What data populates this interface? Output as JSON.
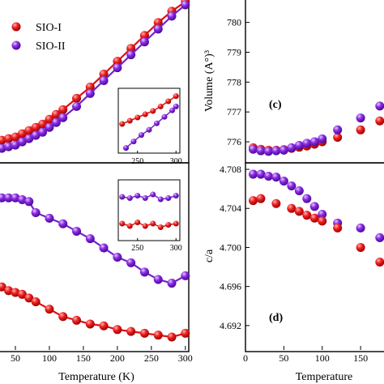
{
  "chart_data": [
    {
      "type": "line",
      "panel_label": "",
      "xlabel": "",
      "ylabel": "",
      "xlim": [
        25,
        305
      ],
      "ylim": [
        0,
        1
      ],
      "legend": {
        "placement": "top-left",
        "entries": [
          "SIO-I",
          "SIO-II"
        ]
      },
      "series": [
        {
          "name": "SIO-I",
          "color": "#dd1111",
          "x": [
            10,
            20,
            30,
            40,
            50,
            60,
            70,
            80,
            90,
            100,
            110,
            120,
            140,
            160,
            180,
            200,
            220,
            240,
            260,
            280,
            300
          ],
          "y": [
            0.11,
            0.12,
            0.13,
            0.14,
            0.15,
            0.17,
            0.19,
            0.21,
            0.23,
            0.26,
            0.29,
            0.32,
            0.39,
            0.46,
            0.54,
            0.62,
            0.7,
            0.78,
            0.86,
            0.93,
            0.99
          ]
        },
        {
          "name": "SIO-II",
          "color": "#7722cc",
          "x": [
            10,
            20,
            30,
            40,
            50,
            60,
            70,
            80,
            90,
            100,
            110,
            120,
            140,
            160,
            180,
            200,
            220,
            240,
            260,
            280,
            300
          ],
          "y": [
            0.06,
            0.07,
            0.08,
            0.09,
            0.1,
            0.12,
            0.14,
            0.16,
            0.18,
            0.21,
            0.24,
            0.27,
            0.34,
            0.42,
            0.5,
            0.58,
            0.66,
            0.74,
            0.82,
            0.9,
            0.97
          ]
        }
      ],
      "inset": {
        "xlim": [
          225,
          305
        ],
        "xticks": [
          250,
          300
        ],
        "series": [
          {
            "name": "SIO-I",
            "x": [
              230,
              240,
              250,
              260,
              270,
              280,
              290,
              300
            ],
            "y": [
              0.45,
              0.5,
              0.55,
              0.6,
              0.65,
              0.72,
              0.8,
              0.88
            ]
          },
          {
            "name": "SIO-II",
            "x": [
              235,
              245,
              255,
              265,
              275,
              285,
              295,
              300
            ],
            "y": [
              0.08,
              0.18,
              0.28,
              0.36,
              0.46,
              0.56,
              0.66,
              0.72
            ]
          }
        ]
      }
    },
    {
      "type": "line",
      "panel_label": "",
      "xlabel": "Temperature (K)",
      "ylabel": "",
      "xlim": [
        25,
        305
      ],
      "ylim": [
        0,
        1
      ],
      "xticks": [
        50,
        100,
        150,
        200,
        250,
        300
      ],
      "series": [
        {
          "name": "SIO-II",
          "color": "#7722cc",
          "x": [
            10,
            20,
            30,
            40,
            50,
            60,
            70,
            80,
            100,
            120,
            140,
            160,
            180,
            200,
            220,
            240,
            260,
            280,
            300
          ],
          "y": [
            0.82,
            0.82,
            0.82,
            0.82,
            0.82,
            0.81,
            0.8,
            0.74,
            0.71,
            0.68,
            0.64,
            0.6,
            0.55,
            0.5,
            0.47,
            0.42,
            0.38,
            0.36,
            0.4
          ]
        },
        {
          "name": "SIO-I",
          "color": "#dd1111",
          "x": [
            10,
            20,
            30,
            40,
            50,
            60,
            70,
            80,
            100,
            120,
            140,
            160,
            180,
            200,
            220,
            240,
            260,
            280,
            300
          ],
          "y": [
            0.38,
            0.36,
            0.34,
            0.32,
            0.31,
            0.3,
            0.28,
            0.26,
            0.22,
            0.18,
            0.16,
            0.14,
            0.13,
            0.11,
            0.1,
            0.09,
            0.08,
            0.07,
            0.09
          ]
        }
      ],
      "inset": {
        "xlim": [
          225,
          305
        ],
        "xticks": [
          250,
          300
        ],
        "series": [
          {
            "name": "SIO-II",
            "x": [
              230,
              240,
              250,
              260,
              270,
              280,
              290,
              300
            ],
            "y": [
              0.72,
              0.7,
              0.74,
              0.7,
              0.76,
              0.68,
              0.7,
              0.74
            ]
          },
          {
            "name": "SIO-I",
            "x": [
              230,
              240,
              250,
              260,
              270,
              280,
              290,
              300
            ],
            "y": [
              0.28,
              0.24,
              0.3,
              0.24,
              0.28,
              0.22,
              0.26,
              0.28
            ]
          }
        ]
      }
    },
    {
      "type": "scatter",
      "panel_label": "(c)",
      "xlabel": "",
      "ylabel": "Volume (A°)³",
      "xlim": [
        0,
        190
      ],
      "ylim": [
        775.35,
        780.75
      ],
      "yticks": [
        776,
        777,
        778,
        779,
        780
      ],
      "series": [
        {
          "name": "SIO-I",
          "color": "#dd1111",
          "x": [
            10,
            20,
            30,
            40,
            50,
            60,
            70,
            80,
            90,
            100,
            120,
            150,
            175
          ],
          "y": [
            775.8,
            775.75,
            775.72,
            775.72,
            775.74,
            775.78,
            775.82,
            775.86,
            775.92,
            776.0,
            776.15,
            776.4,
            776.7
          ]
        },
        {
          "name": "SIO-II",
          "color": "#7722cc",
          "x": [
            10,
            20,
            30,
            40,
            50,
            60,
            70,
            80,
            90,
            100,
            120,
            150,
            175
          ],
          "y": [
            775.75,
            775.7,
            775.68,
            775.7,
            775.72,
            775.8,
            775.88,
            775.95,
            776.0,
            776.1,
            776.4,
            776.8,
            777.2
          ]
        }
      ]
    },
    {
      "type": "scatter",
      "panel_label": "(d)",
      "xlabel": "Temperature",
      "ylabel": "c/a",
      "xlim": [
        0,
        190
      ],
      "ylim": [
        4.6895,
        4.7085
      ],
      "xticks": [
        0,
        50,
        100,
        150
      ],
      "yticks": [
        4.692,
        4.696,
        4.7,
        4.704,
        4.708
      ],
      "series": [
        {
          "name": "SIO-II",
          "color": "#7722cc",
          "x": [
            10,
            20,
            30,
            40,
            50,
            60,
            70,
            80,
            90,
            100,
            120,
            150,
            175
          ],
          "y": [
            4.7075,
            4.7075,
            4.7073,
            4.7072,
            4.7068,
            4.7063,
            4.7058,
            4.705,
            4.7042,
            4.7034,
            4.7025,
            4.702,
            4.701
          ]
        },
        {
          "name": "SIO-I",
          "color": "#dd1111",
          "x": [
            10,
            20,
            40,
            60,
            70,
            80,
            90,
            100,
            120,
            150,
            175
          ],
          "y": [
            4.7048,
            4.705,
            4.7045,
            4.704,
            4.7037,
            4.7033,
            4.703,
            4.7027,
            4.702,
            4.7,
            4.6985
          ]
        }
      ]
    }
  ]
}
